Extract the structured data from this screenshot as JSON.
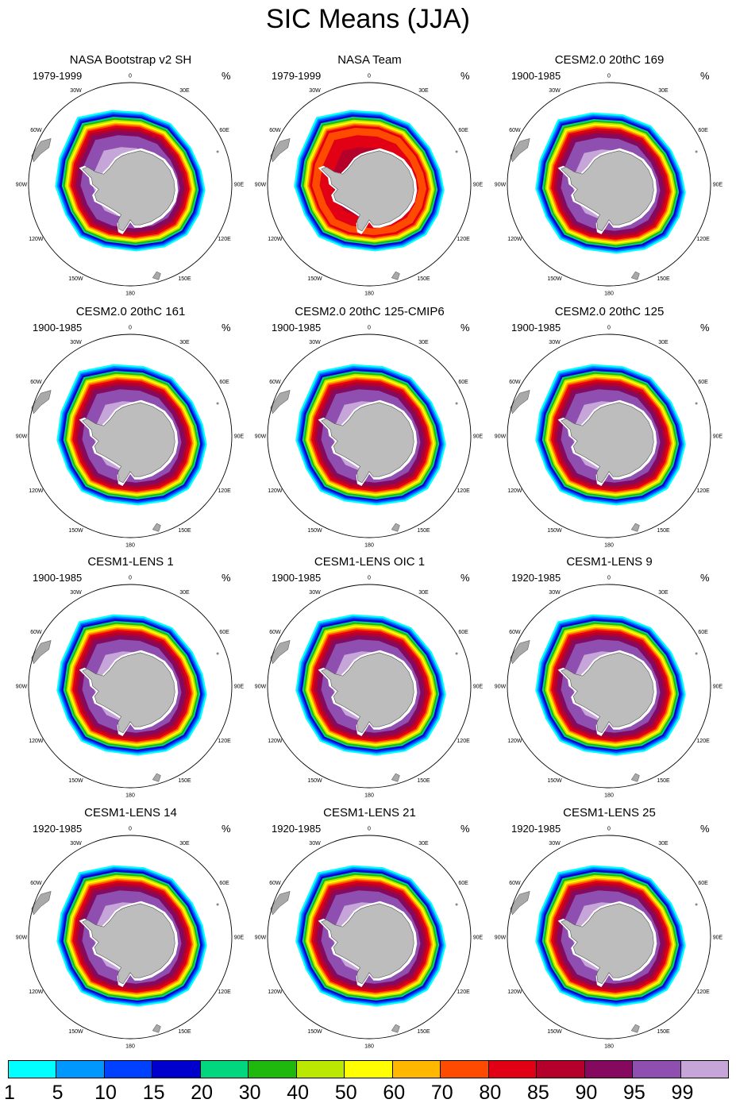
{
  "chart_data": {
    "type": "heatmap",
    "title": "SIC Means (JJA)",
    "projection": "south polar stereographic",
    "unit": "%",
    "colorbar": {
      "levels": [
        "1",
        "5",
        "10",
        "15",
        "20",
        "30",
        "40",
        "50",
        "60",
        "70",
        "80",
        "85",
        "90",
        "95",
        "99"
      ],
      "colors": [
        "#00ffff",
        "#0097ff",
        "#0040ff",
        "#0000cc",
        "#00d77f",
        "#1fb80d",
        "#bbe800",
        "#ffff00",
        "#ffb700",
        "#ff4b00",
        "#e10014",
        "#b4002b",
        "#850a5f",
        "#8e4fb0",
        "#c6a6d8"
      ]
    },
    "grid_labels": {
      "longitudes": [
        "0",
        "30E",
        "60E",
        "90E",
        "120E",
        "150E",
        "180",
        "150W",
        "120W",
        "90W",
        "60W",
        "30W"
      ]
    },
    "panels": [
      {
        "title": "NASA Bootstrap v2 SH",
        "period": "1979-1999",
        "unit": "%"
      },
      {
        "title": "NASA Team",
        "period": "1979-1999",
        "unit": "%"
      },
      {
        "title": "CESM2.0 20thC 169",
        "period": "1900-1985",
        "unit": "%"
      },
      {
        "title": "CESM2.0 20thC 161",
        "period": "1900-1985",
        "unit": "%"
      },
      {
        "title": "CESM2.0 20thC 125-CMIP6",
        "period": "1900-1985",
        "unit": "%"
      },
      {
        "title": "CESM2.0 20thC 125",
        "period": "1900-1985",
        "unit": "%"
      },
      {
        "title": "CESM1-LENS 1",
        "period": "1900-1985",
        "unit": "%"
      },
      {
        "title": "CESM1-LENS OIC 1",
        "period": "1900-1985",
        "unit": "%"
      },
      {
        "title": "CESM1-LENS 9",
        "period": "1920-1985",
        "unit": "%"
      },
      {
        "title": "CESM1-LENS 14",
        "period": "1920-1985",
        "unit": "%"
      },
      {
        "title": "CESM1-LENS 21",
        "period": "1920-1985",
        "unit": "%"
      },
      {
        "title": "CESM1-LENS 25",
        "period": "1920-1985",
        "unit": "%"
      }
    ]
  }
}
